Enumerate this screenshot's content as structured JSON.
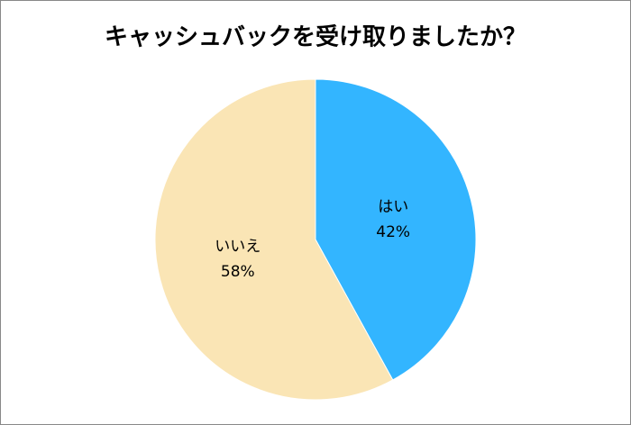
{
  "chart_data": {
    "type": "pie",
    "title": "キャッシュバックを受け取りましたか？",
    "categories": [
      "はい",
      "いいえ"
    ],
    "values": [
      42,
      58
    ],
    "value_labels": [
      "42%",
      "58%"
    ],
    "colors": [
      "#33b5ff",
      "#fae5b5"
    ]
  }
}
